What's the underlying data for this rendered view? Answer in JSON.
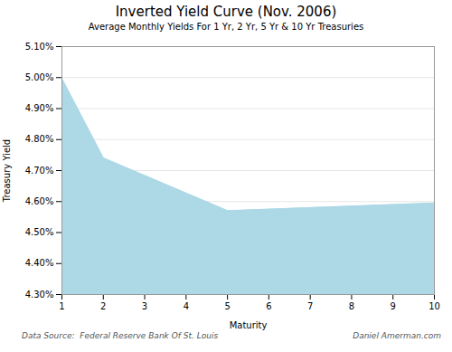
{
  "chart_data": {
    "type": "area",
    "title": "Inverted Yield Curve (Nov. 2006)",
    "subtitle": "Average Monthly Yields For 1 Yr, 2 Yr, 5 Yr & 10 Yr Treasuries",
    "xlabel": "Maturity",
    "ylabel": "Treasury Yield",
    "x": [
      1,
      2,
      5,
      10
    ],
    "values": [
      4.995,
      4.74,
      4.57,
      4.595
    ],
    "color": "#add8e6",
    "xlim": [
      1,
      10
    ],
    "ylim": [
      4.3,
      5.1
    ],
    "xticks": [
      1,
      2,
      3,
      4,
      5,
      6,
      7,
      8,
      9,
      10
    ],
    "yticks": [
      {
        "value": 4.3,
        "label": "4.30%"
      },
      {
        "value": 4.4,
        "label": "4.40%"
      },
      {
        "value": 4.5,
        "label": "4.50%"
      },
      {
        "value": 4.6,
        "label": "4.60%"
      },
      {
        "value": 4.7,
        "label": "4.70%"
      },
      {
        "value": 4.8,
        "label": "4.80%"
      },
      {
        "value": 4.9,
        "label": "4.90%"
      },
      {
        "value": 5.0,
        "label": "5.00%"
      },
      {
        "value": 5.1,
        "label": "5.10%"
      }
    ],
    "grid": true,
    "annotations": [
      "Data Source:  Federal Reserve Bank Of St. Louis",
      "Daniel Amerman.com"
    ]
  }
}
